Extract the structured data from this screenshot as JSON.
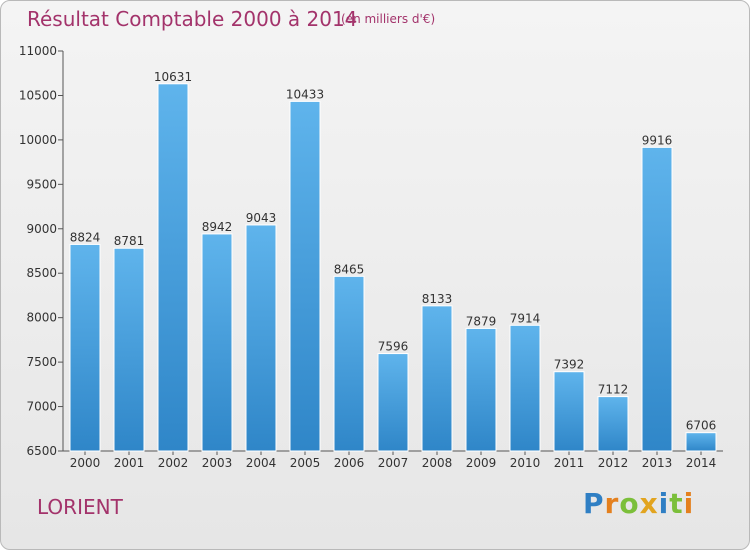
{
  "chart_data": {
    "type": "bar",
    "title": "Résultat Comptable 2000 à 2014",
    "subtitle": "(en milliers d'€)",
    "xlabel": "",
    "ylabel": "",
    "categories": [
      "2000",
      "2001",
      "2002",
      "2003",
      "2004",
      "2005",
      "2006",
      "2007",
      "2008",
      "2009",
      "2010",
      "2011",
      "2012",
      "2013",
      "2014"
    ],
    "values": [
      8824,
      8781,
      10631,
      8942,
      9043,
      10433,
      8465,
      7596,
      8133,
      7879,
      7914,
      7392,
      7112,
      9916,
      6706
    ],
    "ylim": [
      6500,
      11000
    ],
    "yticks": [
      6500,
      7000,
      7500,
      8000,
      8500,
      9000,
      9500,
      10000,
      10500,
      11000
    ],
    "grid": false,
    "bar_color": "#4a9fdd"
  },
  "footer": {
    "city": "LORIENT",
    "logo_letters": [
      {
        "ch": "P",
        "color": "#2f7fc4"
      },
      {
        "ch": "r",
        "color": "#e4801e"
      },
      {
        "ch": "o",
        "color": "#7bbf3a"
      },
      {
        "ch": "x",
        "color": "#e2a41f"
      },
      {
        "ch": "i",
        "color": "#2f7fc4"
      },
      {
        "ch": "t",
        "color": "#7bbf3a"
      },
      {
        "ch": "i",
        "color": "#e4801e"
      }
    ]
  }
}
